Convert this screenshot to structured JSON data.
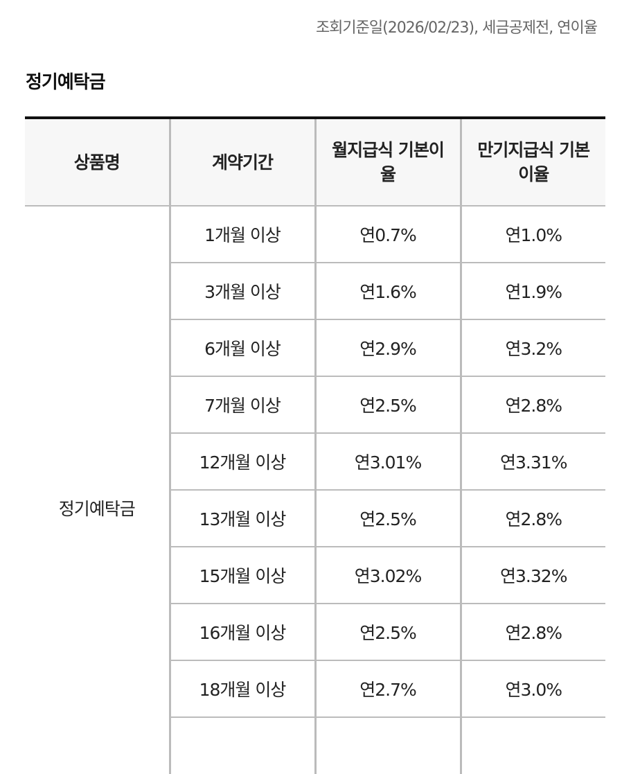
{
  "notice": "조회기준일(2026/02/23), 세금공제전, 연이율",
  "section_title": "정기예탁금",
  "table": {
    "headers": {
      "product": "상품명",
      "term": "계약기간",
      "monthly": "월지급식 기본이율",
      "maturity": "만기지급식 기본이율"
    },
    "product_name": "정기예탁금",
    "rows": [
      {
        "term": "1개월 이상",
        "monthly": "연0.7%",
        "maturity": "연1.0%"
      },
      {
        "term": "3개월 이상",
        "monthly": "연1.6%",
        "maturity": "연1.9%"
      },
      {
        "term": "6개월 이상",
        "monthly": "연2.9%",
        "maturity": "연3.2%"
      },
      {
        "term": "7개월 이상",
        "monthly": "연2.5%",
        "maturity": "연2.8%"
      },
      {
        "term": "12개월 이상",
        "monthly": "연3.01%",
        "maturity": "연3.31%"
      },
      {
        "term": "13개월 이상",
        "monthly": "연2.5%",
        "maturity": "연2.8%"
      },
      {
        "term": "15개월 이상",
        "monthly": "연3.02%",
        "maturity": "연3.32%"
      },
      {
        "term": "16개월 이상",
        "monthly": "연2.5%",
        "maturity": "연2.8%"
      },
      {
        "term": "18개월 이상",
        "monthly": "연2.7%",
        "maturity": "연3.0%"
      }
    ]
  }
}
